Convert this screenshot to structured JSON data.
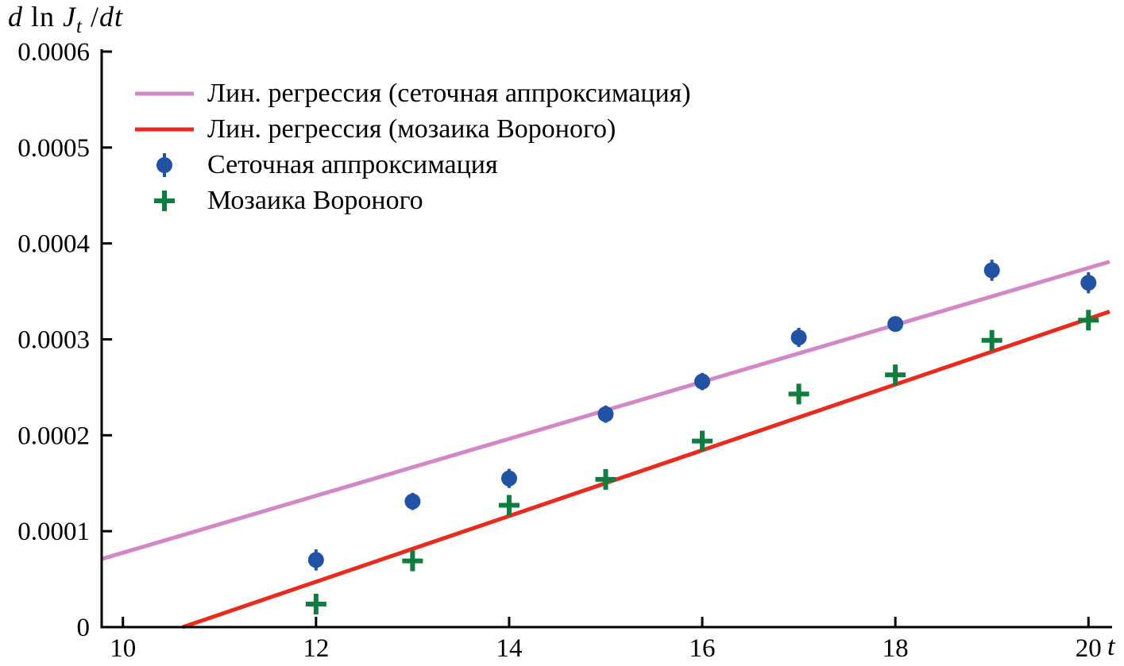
{
  "figure": {
    "background": "#ffffff",
    "axis_color": "#000000"
  },
  "chart_data": {
    "type": "scatter",
    "title": "",
    "xlabel": "t",
    "ylabel": "d ln J_t /dt",
    "ylabel_parts": {
      "d": "d",
      "ln": " ln ",
      "J": "J",
      "sub": "t",
      "slash": " /",
      "dt": "dt"
    },
    "xlim": [
      9.78,
      20.22
    ],
    "ylim": [
      0,
      0.0006
    ],
    "x_ticks": [
      10,
      12,
      14,
      16,
      18,
      20
    ],
    "x_tick_labels": [
      "10",
      "12",
      "14",
      "16",
      "18",
      "20"
    ],
    "y_ticks": [
      0,
      0.0001,
      0.0002,
      0.0003,
      0.0004,
      0.0005,
      0.0006
    ],
    "y_tick_labels": [
      "0",
      "0.0001",
      "0.0002",
      "0.0003",
      "0.0004",
      "0.0005",
      "0.0006"
    ],
    "grid": false,
    "legend_position": "top-left",
    "series": [
      {
        "name": "Лин. регрессия (сеточная аппроксимация)",
        "type": "line",
        "color": "#d287c6",
        "x": [
          9.78,
          20.22
        ],
        "y": [
          7.1e-05,
          0.000381
        ]
      },
      {
        "name": "Лин. регрессия (мозаика Вороного)",
        "type": "line",
        "color": "#ea2a1d",
        "x": [
          10.62,
          20.22
        ],
        "y": [
          0.0,
          0.000329
        ]
      },
      {
        "name": "Сеточная аппроксимация",
        "type": "scatter",
        "marker": "circle",
        "color": "#2152a3",
        "x": [
          12,
          13,
          14,
          15,
          16,
          17,
          18,
          19,
          20
        ],
        "y": [
          7e-05,
          0.000131,
          0.000155,
          0.000222,
          0.000256,
          0.000302,
          0.000316,
          0.000372,
          0.000359
        ],
        "yerr": [
          1.1e-05,
          9e-06,
          1e-05,
          9e-06,
          9e-06,
          1e-05,
          8e-06,
          1.1e-05,
          1.1e-05
        ]
      },
      {
        "name": "Мозаика Вороного",
        "type": "scatter",
        "marker": "plus",
        "color": "#0e7d3e",
        "x": [
          12,
          13,
          14,
          15,
          16,
          17,
          18,
          19,
          20
        ],
        "y": [
          2.4e-05,
          6.9e-05,
          0.000127,
          0.000154,
          0.000194,
          0.000243,
          0.000263,
          0.000299,
          0.00032
        ]
      }
    ]
  }
}
